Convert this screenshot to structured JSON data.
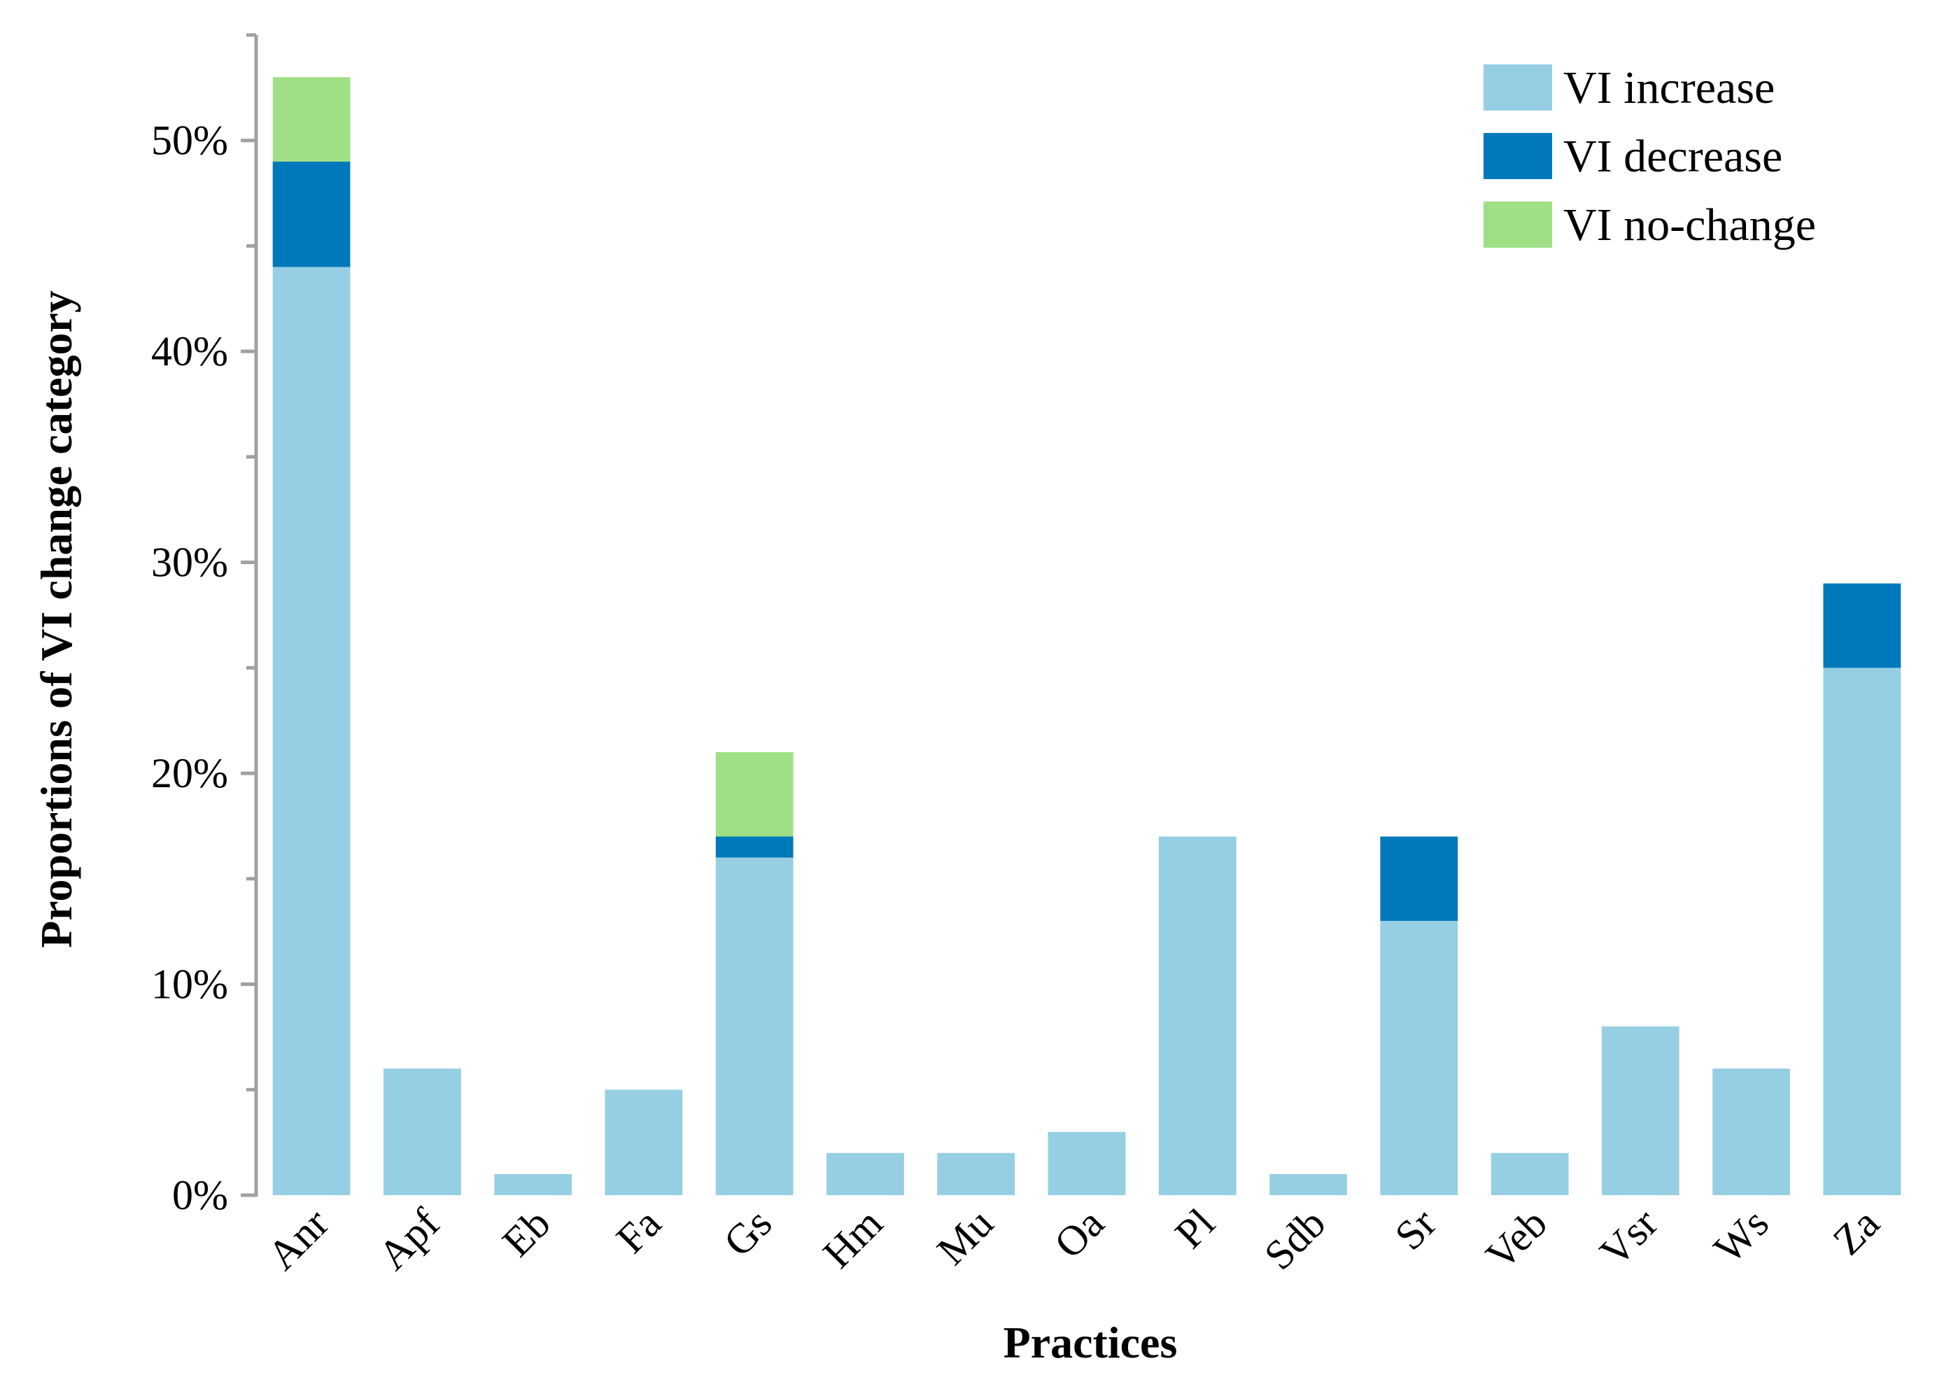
{
  "chart_data": {
    "type": "bar",
    "stacked": true,
    "title": "",
    "xlabel": "Practices",
    "ylabel": "Proportions of VI change category",
    "ylim": [
      0,
      55
    ],
    "ytick_values": [
      0,
      10,
      20,
      30,
      40,
      50
    ],
    "ytick_labels": [
      "0%",
      "10%",
      "20%",
      "30%",
      "40%",
      "50%"
    ],
    "minor_tick_values": [
      5,
      15,
      25,
      35,
      45,
      55
    ],
    "categories": [
      "Anr",
      "Apf",
      "Eb",
      "Fa",
      "Gs",
      "Hm",
      "Mu",
      "Oa",
      "Pl",
      "Sdb",
      "Sr",
      "Veb",
      "Vsr",
      "Ws",
      "Za"
    ],
    "series": [
      {
        "name": "VI increase",
        "color": "#96cfe4",
        "values": [
          44,
          6,
          1,
          5,
          16,
          2,
          2,
          3,
          17,
          1,
          13,
          2,
          8,
          6,
          25
        ]
      },
      {
        "name": "VI decrease",
        "color": "#0079bb",
        "values": [
          5,
          0,
          0,
          0,
          1,
          0,
          0,
          0,
          0,
          0,
          4,
          0,
          0,
          0,
          4
        ]
      },
      {
        "name": "VI no-change",
        "color": "#9fdf85",
        "values": [
          4,
          0,
          0,
          0,
          4,
          0,
          0,
          0,
          0,
          0,
          0,
          0,
          0,
          0,
          0
        ]
      }
    ],
    "legend_position": "top-right",
    "grid": false,
    "axis_color": "#a0a0a0"
  }
}
